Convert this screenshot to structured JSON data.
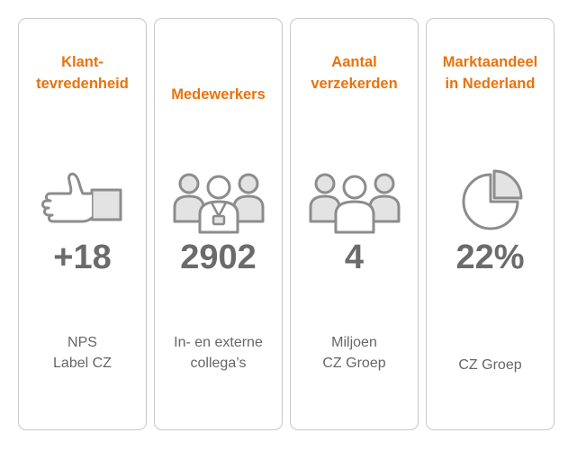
{
  "cards": [
    {
      "title": "Klant-\ntevredenheid",
      "icon": "thumbs-up-icon",
      "value": "+18",
      "caption": "NPS\nLabel CZ"
    },
    {
      "title": "Medewerkers",
      "icon": "employees-with-badge-icon",
      "value": "2902",
      "caption": "In- en externe\ncollega’s"
    },
    {
      "title": "Aantal\nverzekerden",
      "icon": "people-group-icon",
      "value": "4",
      "caption": "Miljoen\nCZ Groep"
    },
    {
      "title": "Marktaandeel\nin Nederland",
      "icon": "pie-chart-icon",
      "value": "22%",
      "caption": "CZ Groep"
    }
  ],
  "colors": {
    "title": "#e8730c",
    "value": "#6b6b6b",
    "icon_stroke": "#8c8c8c",
    "icon_fill": "#e3e3e3",
    "border": "#c8c8c8"
  }
}
